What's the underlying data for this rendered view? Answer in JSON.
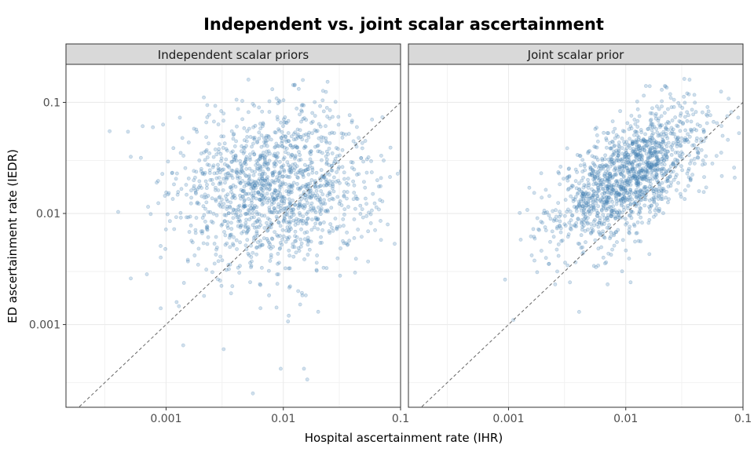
{
  "chart_data": {
    "type": "scatter",
    "title": "Independent vs. joint scalar ascertainment",
    "xlabel": "Hospital ascertainment rate (IHR)",
    "ylabel": "ED ascertainment rate (IEDR)",
    "x_scale": "log10",
    "y_scale": "log10",
    "xlim": [
      0.00014,
      0.1
    ],
    "ylim": [
      0.00018,
      0.22
    ],
    "x_ticks": [
      0.001,
      0.01,
      0.1
    ],
    "x_tick_labels": [
      "0.001",
      "0.01",
      "0.1"
    ],
    "y_ticks": [
      0.001,
      0.01,
      0.1
    ],
    "y_tick_labels": [
      "0.001",
      "0.01",
      "0.1"
    ],
    "grid": true,
    "reference_line": "y = x",
    "point_color": "#4682b4",
    "panel_strip_color": "#d9d9d9",
    "panels": [
      {
        "title": "Independent scalar priors",
        "x_center": 0.0085,
        "x_log_sd": 0.42,
        "y_center": 0.017,
        "y_log_sd": 0.36,
        "correlation": 0.05,
        "n_points": 1400,
        "points": [
          {
            "x": 0.00013,
            "y": 0.013
          },
          {
            "x": 0.00033,
            "y": 0.055
          },
          {
            "x": 0.0005,
            "y": 0.0026
          },
          {
            "x": 0.0014,
            "y": 0.00065
          },
          {
            "x": 0.0031,
            "y": 0.0006
          },
          {
            "x": 0.0055,
            "y": 0.00024
          },
          {
            "x": 0.0095,
            "y": 0.0004
          },
          {
            "x": 0.015,
            "y": 0.0004
          },
          {
            "x": 0.016,
            "y": 0.00032
          },
          {
            "x": 0.0062,
            "y": 0.09
          },
          {
            "x": 0.009,
            "y": 0.098
          },
          {
            "x": 0.013,
            "y": 0.088
          },
          {
            "x": 0.025,
            "y": 0.085
          },
          {
            "x": 0.05,
            "y": 0.045
          },
          {
            "x": 0.058,
            "y": 0.015
          },
          {
            "x": 0.0009,
            "y": 0.0014
          }
        ]
      },
      {
        "title": "Joint scalar prior",
        "x_center": 0.0105,
        "x_log_sd": 0.32,
        "y_center": 0.021,
        "y_log_sd": 0.3,
        "correlation": 0.62,
        "n_points": 1400,
        "points": [
          {
            "x": 0.0011,
            "y": 0.0011
          },
          {
            "x": 0.004,
            "y": 0.0013
          },
          {
            "x": 0.0018,
            "y": 0.0072
          },
          {
            "x": 0.0019,
            "y": 0.023
          },
          {
            "x": 0.0025,
            "y": 0.0023
          },
          {
            "x": 0.007,
            "y": 0.0023
          },
          {
            "x": 0.011,
            "y": 0.0024
          },
          {
            "x": 0.016,
            "y": 0.14
          },
          {
            "x": 0.035,
            "y": 0.16
          },
          {
            "x": 0.065,
            "y": 0.125
          },
          {
            "x": 0.06,
            "y": 0.065
          },
          {
            "x": 0.085,
            "y": 0.021
          },
          {
            "x": 0.067,
            "y": 0.05
          }
        ]
      }
    ]
  }
}
